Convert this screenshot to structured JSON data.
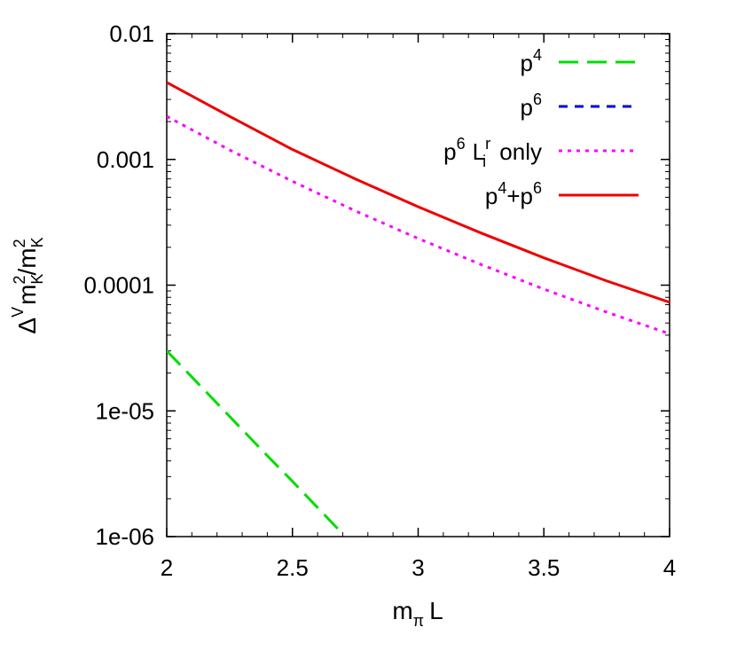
{
  "chart_data": {
    "type": "line",
    "xlabel": "mπ L",
    "ylabel": "ΔV m_K^2 / m_K^2",
    "xlim": [
      2,
      4
    ],
    "ylim": [
      1e-06,
      0.01
    ],
    "y_scale": "log",
    "x_ticks": [
      2,
      2.5,
      3,
      3.5,
      4
    ],
    "x_tick_labels": [
      "2",
      "2.5",
      "3",
      "3.5",
      "4"
    ],
    "y_ticks": [
      1e-06,
      1e-05,
      0.0001,
      0.001,
      0.01
    ],
    "y_tick_labels": [
      "1e-06",
      "1e-05",
      "0.0001",
      "0.001",
      "0.01"
    ],
    "legend_position": "top-right",
    "grid": false,
    "series": [
      {
        "name": "p4",
        "label_base": "p",
        "label_sup": "4",
        "color": "#00dd00",
        "dash": "long-dash",
        "x": [
          2.0,
          2.1,
          2.2,
          2.3,
          2.4,
          2.5,
          2.6,
          2.7
        ],
        "y": [
          3e-05,
          1.86e-05,
          1.15e-05,
          7.1e-06,
          4.4e-06,
          2.75e-06,
          1.7e-06,
          1.05e-06
        ]
      },
      {
        "name": "p6",
        "label_base": "p",
        "label_sup": "6",
        "color": "#0000dd",
        "dash": "short-dash",
        "x": [],
        "y": []
      },
      {
        "name": "p6 Lir only",
        "label_base": "p",
        "label_sup": "6",
        "label_l": "L",
        "label_l_sup": "r",
        "label_l_sub": "i",
        "label_tail": "only",
        "color": "#ff00ff",
        "dash": "dot",
        "x": [
          2.0,
          2.25,
          2.5,
          2.75,
          3.0,
          3.25,
          3.5,
          3.75,
          4.0
        ],
        "y": [
          0.0022,
          0.00119,
          0.00067,
          0.00039,
          0.000235,
          0.000146,
          9.3e-05,
          6.1e-05,
          4.1e-05
        ]
      },
      {
        "name": "p4+p6",
        "label_base": "p",
        "label_sup": "4",
        "label_plus": "+p",
        "label_sup2": "6",
        "color": "#ee0000",
        "dash": "solid",
        "x": [
          2.0,
          2.25,
          2.5,
          2.75,
          3.0,
          3.25,
          3.5,
          3.75,
          4.0
        ],
        "y": [
          0.0041,
          0.0022,
          0.0012,
          0.0007,
          0.00042,
          0.00026,
          0.000165,
          0.000108,
          7.3e-05
        ]
      }
    ]
  }
}
